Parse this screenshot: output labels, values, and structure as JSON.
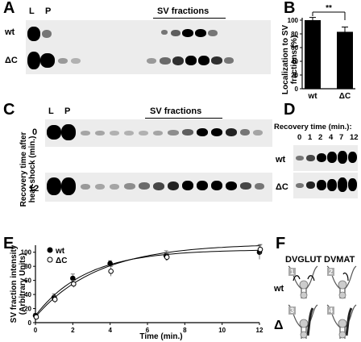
{
  "panels": {
    "A": {
      "label": "A",
      "lanes_L": "L",
      "lanes_P": "P",
      "fractions": "SV fractions",
      "row1": "wt",
      "row2": "ΔC"
    },
    "B": {
      "label": "B",
      "ylabel": "Localization to SV fractions (%)",
      "sig": "**",
      "chart_data": {
        "type": "bar",
        "categories": [
          "wt",
          "ΔC"
        ],
        "values": [
          100,
          83
        ],
        "errors": [
          4,
          7
        ],
        "ylim": [
          0,
          100
        ],
        "yticks": [
          0,
          20,
          40,
          60,
          80,
          100
        ],
        "ylabel": "Localization to SV fractions (%)",
        "xlabel": ""
      }
    },
    "C": {
      "label": "C",
      "lanes_L": "L",
      "lanes_P": "P",
      "fractions": "SV fractions",
      "ylabel": "Recovery time after heat-shock (min.)",
      "row1": "0",
      "row2": "12"
    },
    "D": {
      "label": "D",
      "title": "Recovery time (min.):",
      "times": [
        "0",
        "1",
        "2",
        "4",
        "7",
        "12"
      ],
      "row1": "wt",
      "row2": "ΔC"
    },
    "E": {
      "label": "E",
      "chart_data": {
        "type": "line",
        "xlabel": "Time (min.)",
        "ylabel": "SV fraction intensity (Arbitrary Units)",
        "xlim": [
          0,
          12
        ],
        "ylim": [
          0,
          110
        ],
        "xticks": [
          0,
          2,
          4,
          6,
          8,
          10,
          12
        ],
        "yticks": [
          0,
          20,
          40,
          60,
          80,
          100
        ],
        "series": [
          {
            "name": "wt",
            "marker": "filled",
            "x": [
              0,
              1,
              2,
              4,
              7,
              12
            ],
            "y": [
              10,
              36,
              63,
              84,
              95,
              100
            ],
            "err": [
              3,
              5,
              6,
              4,
              7,
              10
            ]
          },
          {
            "name": "ΔC",
            "marker": "open",
            "x": [
              0,
              1,
              2,
              4,
              7,
              12
            ],
            "y": [
              8,
              33,
              55,
              73,
              93,
              104
            ],
            "err": [
              3,
              5,
              5,
              7,
              5,
              7
            ]
          }
        ]
      }
    },
    "F": {
      "label": "F",
      "col1": "DVGLUT",
      "col2": "DVMAT",
      "row1": "wt",
      "row2": "Δ",
      "nums": [
        "1",
        "2",
        "3",
        "4"
      ]
    }
  }
}
